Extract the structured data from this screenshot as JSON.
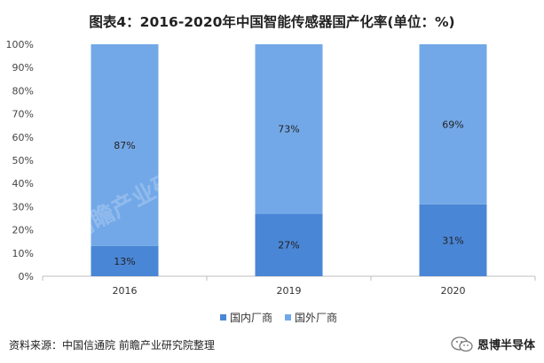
{
  "title": "图表4：2016-2020年中国智能传感器国产化率(单位：%)",
  "chart_data": {
    "type": "bar",
    "stacked": true,
    "categories": [
      "2016",
      "2019",
      "2020"
    ],
    "series": [
      {
        "name": "国内厂商",
        "values": [
          13,
          27,
          31
        ],
        "labels": [
          "13%",
          "27%",
          "31%"
        ],
        "color": "#4a86d6"
      },
      {
        "name": "国外厂商",
        "values": [
          87,
          73,
          69
        ],
        "labels": [
          "87%",
          "73%",
          "69%"
        ],
        "color": "#73a8e8"
      }
    ],
    "ylim": [
      0,
      100
    ],
    "yticks": [
      "0%",
      "10%",
      "20%",
      "30%",
      "40%",
      "50%",
      "60%",
      "70%",
      "80%",
      "90%",
      "100%"
    ],
    "grid": false,
    "legend_position": "bottom"
  },
  "source": "资料来源：中国信通院 前瞻产业研究院整理",
  "brand": {
    "name": "恩博半导体",
    "icon": "wechat-icon"
  },
  "watermark": "前瞻产业研究院"
}
